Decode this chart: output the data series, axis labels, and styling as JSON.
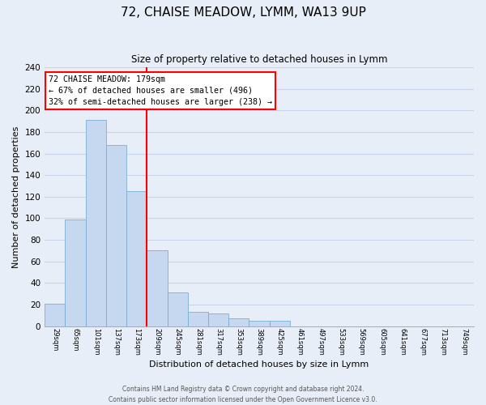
{
  "title": "72, CHAISE MEADOW, LYMM, WA13 9UP",
  "subtitle": "Size of property relative to detached houses in Lymm",
  "xlabel": "Distribution of detached houses by size in Lymm",
  "ylabel": "Number of detached properties",
  "footer_line1": "Contains HM Land Registry data © Crown copyright and database right 2024.",
  "footer_line2": "Contains public sector information licensed under the Open Government Licence v3.0.",
  "bin_labels": [
    "29sqm",
    "65sqm",
    "101sqm",
    "137sqm",
    "173sqm",
    "209sqm",
    "245sqm",
    "281sqm",
    "317sqm",
    "353sqm",
    "389sqm",
    "425sqm",
    "461sqm",
    "497sqm",
    "533sqm",
    "569sqm",
    "605sqm",
    "641sqm",
    "677sqm",
    "713sqm",
    "749sqm"
  ],
  "bar_values": [
    21,
    99,
    191,
    168,
    125,
    70,
    31,
    13,
    12,
    7,
    5,
    5,
    0,
    0,
    0,
    0,
    0,
    0,
    0,
    0,
    0
  ],
  "bar_color": "#c5d8f0",
  "bar_edge_color": "#7aafd4",
  "vline_x_index": 4,
  "vline_color": "red",
  "annotation_line1": "72 CHAISE MEADOW: 179sqm",
  "annotation_line2": "← 67% of detached houses are smaller (496)",
  "annotation_line3": "32% of semi-detached houses are larger (238) →",
  "annotation_box_color": "white",
  "annotation_box_edgecolor": "red",
  "ylim": [
    0,
    240
  ],
  "yticks": [
    0,
    20,
    40,
    60,
    80,
    100,
    120,
    140,
    160,
    180,
    200,
    220,
    240
  ],
  "background_color": "#e8eef7",
  "grid_color": "#c8d4e8"
}
